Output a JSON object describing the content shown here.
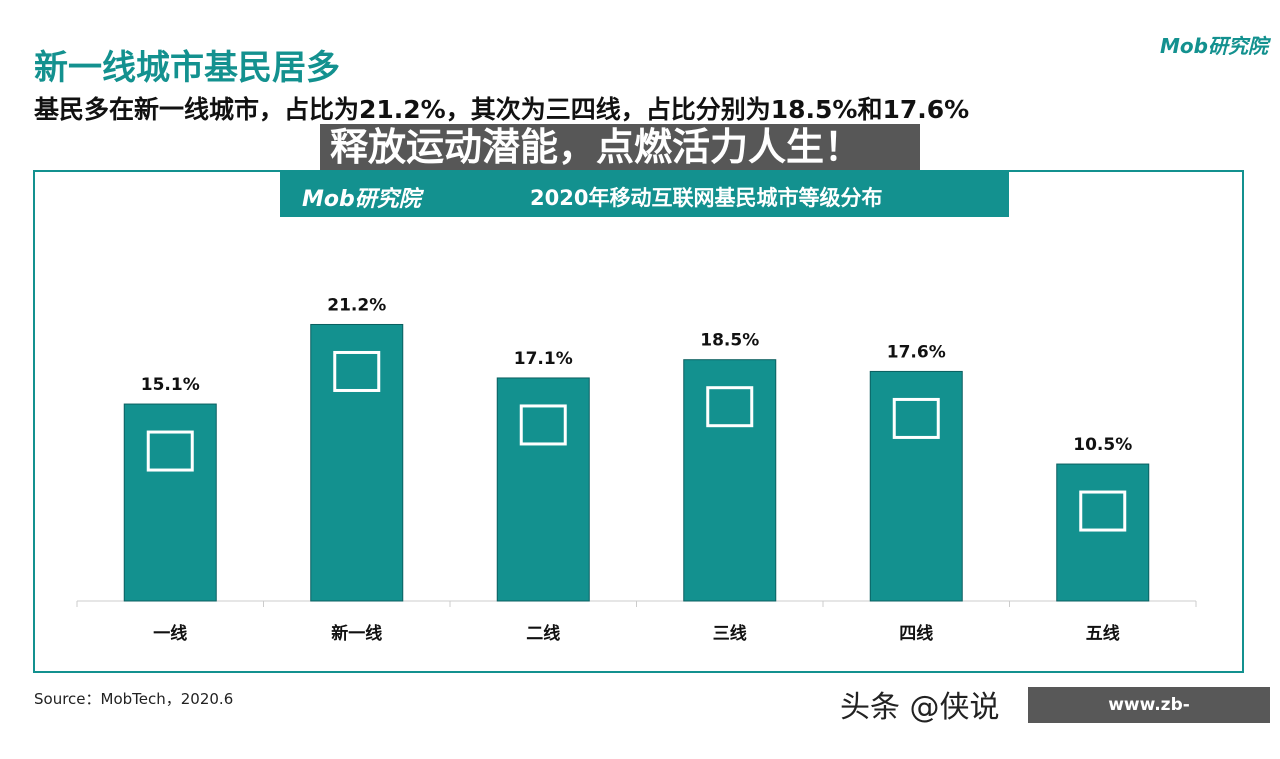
{
  "header": {
    "title": "新一线城市基民居多",
    "subtitle": "基民多在新一线城市，占比为21.2%，其次为三四线，占比分别为18.5%和17.6%",
    "logo": "Mob研究院"
  },
  "chart_data": {
    "type": "bar",
    "title": "2020年移动互联网基民城市等级分布",
    "categories": [
      "一线",
      "新一线",
      "二线",
      "三线",
      "四线",
      "五线"
    ],
    "values": [
      15.1,
      21.2,
      17.1,
      18.5,
      17.6,
      10.5
    ],
    "data_labels": [
      "15.1%",
      "21.2%",
      "17.1%",
      "18.5%",
      "17.6%",
      "10.5%"
    ],
    "icons": [
      "city-skyline-icon",
      "office-building-icon",
      "apartment-icon",
      "house-icon",
      "boat-house-icon",
      "tree-house-icon"
    ],
    "ylim": [
      0,
      23
    ],
    "grid": false,
    "bar_color": "#13918f"
  },
  "banner_logo": "Mob研究院",
  "source": "Source：MobTech，2020.6",
  "overlay": "释放运动潜能，点燃活力人生！",
  "watermark": {
    "toutiao": "头条 @侠说",
    "url": "www.zb-haixingsports.com"
  },
  "colors": {
    "accent": "#13918f"
  }
}
